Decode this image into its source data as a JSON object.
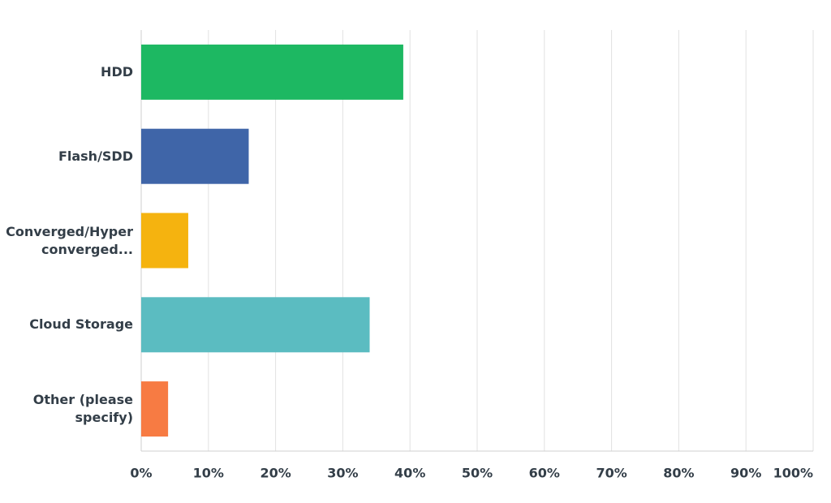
{
  "chart_data": {
    "type": "hbar",
    "categories": [
      "HDD",
      "Flash/SDD",
      "Converged/Hyper converged...",
      "Cloud Storage",
      "Other (please specify)"
    ],
    "values": [
      39,
      16,
      7,
      34,
      4
    ],
    "colors": [
      "#1db862",
      "#3f65a8",
      "#f5b30f",
      "#5bbcc1",
      "#f77b43"
    ],
    "xlim": [
      0,
      100
    ],
    "xticks": [
      {
        "value": 0,
        "label": "0%"
      },
      {
        "value": 10,
        "label": "10%"
      },
      {
        "value": 20,
        "label": "20%"
      },
      {
        "value": 30,
        "label": "30%"
      },
      {
        "value": 40,
        "label": "40%"
      },
      {
        "value": 50,
        "label": "50%"
      },
      {
        "value": 60,
        "label": "60%"
      },
      {
        "value": 70,
        "label": "70%"
      },
      {
        "value": 80,
        "label": "80%"
      },
      {
        "value": 90,
        "label": "90%"
      },
      {
        "value": 100,
        "label": "100%"
      }
    ],
    "grid": true
  }
}
